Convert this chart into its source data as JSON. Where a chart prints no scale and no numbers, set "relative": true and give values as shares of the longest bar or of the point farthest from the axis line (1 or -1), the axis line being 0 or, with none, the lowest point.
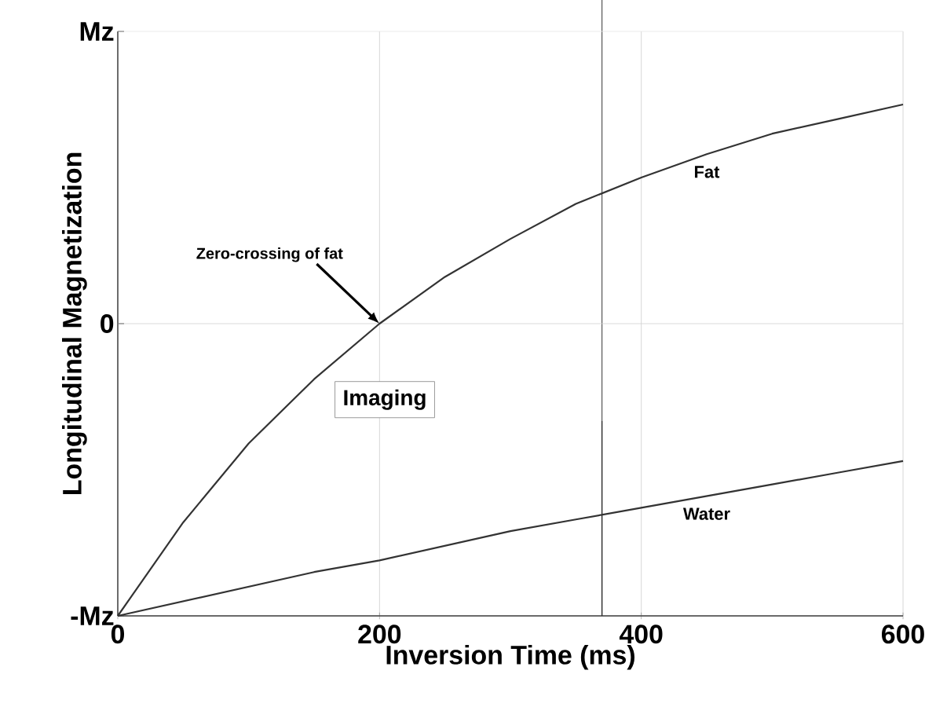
{
  "chart_data": {
    "type": "line",
    "relative": true,
    "xlabel": "Inversion Time (ms)",
    "ylabel": "Longitudinal Magnetization",
    "xlim": [
      0,
      600
    ],
    "xticks": [
      0,
      200,
      400,
      600
    ],
    "grid": "x",
    "line_style": "solid",
    "marker": "none",
    "x": [
      0,
      50,
      100,
      150,
      200,
      250,
      300,
      350,
      400,
      450,
      500,
      550,
      600
    ],
    "series": [
      {
        "name": "Fat",
        "color": "#333333",
        "values": [
          -1,
          -0.68,
          -0.41,
          -0.19,
          0,
          0.16,
          0.29,
          0.41,
          0.5,
          0.58,
          0.65,
          0.7,
          0.75
        ]
      },
      {
        "name": "Water",
        "color": "#333333",
        "values": [
          -1,
          -0.95,
          -0.9,
          -0.85,
          -0.81,
          -0.76,
          -0.71,
          -0.67,
          -0.63,
          -0.59,
          -0.55,
          -0.51,
          -0.47
        ]
      }
    ],
    "ref_lines": [
      {
        "axis": "x",
        "value": 370,
        "color": "#000000"
      },
      {
        "axis": "y",
        "value": -1,
        "label": "-Mz",
        "color": "#555555"
      },
      {
        "axis": "y",
        "value": 0,
        "label": "0",
        "color": "#d0d0d0"
      },
      {
        "axis": "y",
        "value": 1,
        "label": "Mz",
        "color": "#e6e6e6"
      }
    ],
    "annotations": [
      {
        "text": "Zero-crossing of fat",
        "x": 200,
        "y": 0
      },
      "Imaging"
    ]
  }
}
